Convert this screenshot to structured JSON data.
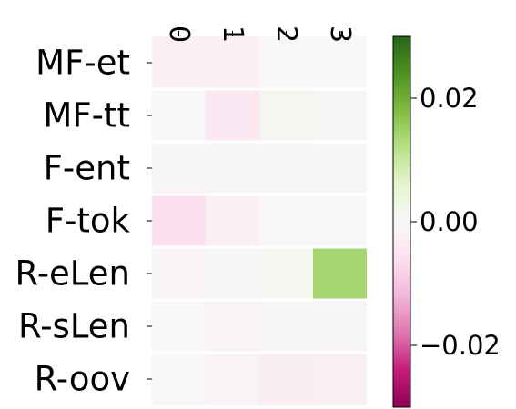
{
  "chart_data": {
    "type": "heatmap",
    "title": "",
    "xlabel": "",
    "ylabel": "",
    "x_categories": [
      "0",
      "1",
      "2",
      "3"
    ],
    "y_categories": [
      "MF-et",
      "MF-tt",
      "F-ent",
      "F-tok",
      "R-eLen",
      "R-sLen",
      "R-oov"
    ],
    "values": [
      [
        -0.002,
        -0.002,
        0.0,
        0.0
      ],
      [
        0.0,
        -0.004,
        0.001,
        -0.0005
      ],
      [
        -0.0005,
        -0.0005,
        -0.0005,
        -0.0005
      ],
      [
        -0.006,
        -0.002,
        0.0,
        0.0
      ],
      [
        -0.001,
        -0.0005,
        0.001,
        0.014
      ],
      [
        0.0,
        -0.001,
        -0.0005,
        -0.0005
      ],
      [
        0.0,
        -0.0008,
        -0.003,
        -0.002
      ]
    ],
    "grid": false,
    "colormap": "PiYG",
    "colorbar": {
      "min": -0.03,
      "max": 0.03,
      "ticks": [
        -0.02,
        0.0,
        0.02
      ],
      "tick_labels": [
        "−0.02",
        "0.00",
        "0.02"
      ],
      "low_color": "#8e0152",
      "high_color": "#276419"
    }
  }
}
